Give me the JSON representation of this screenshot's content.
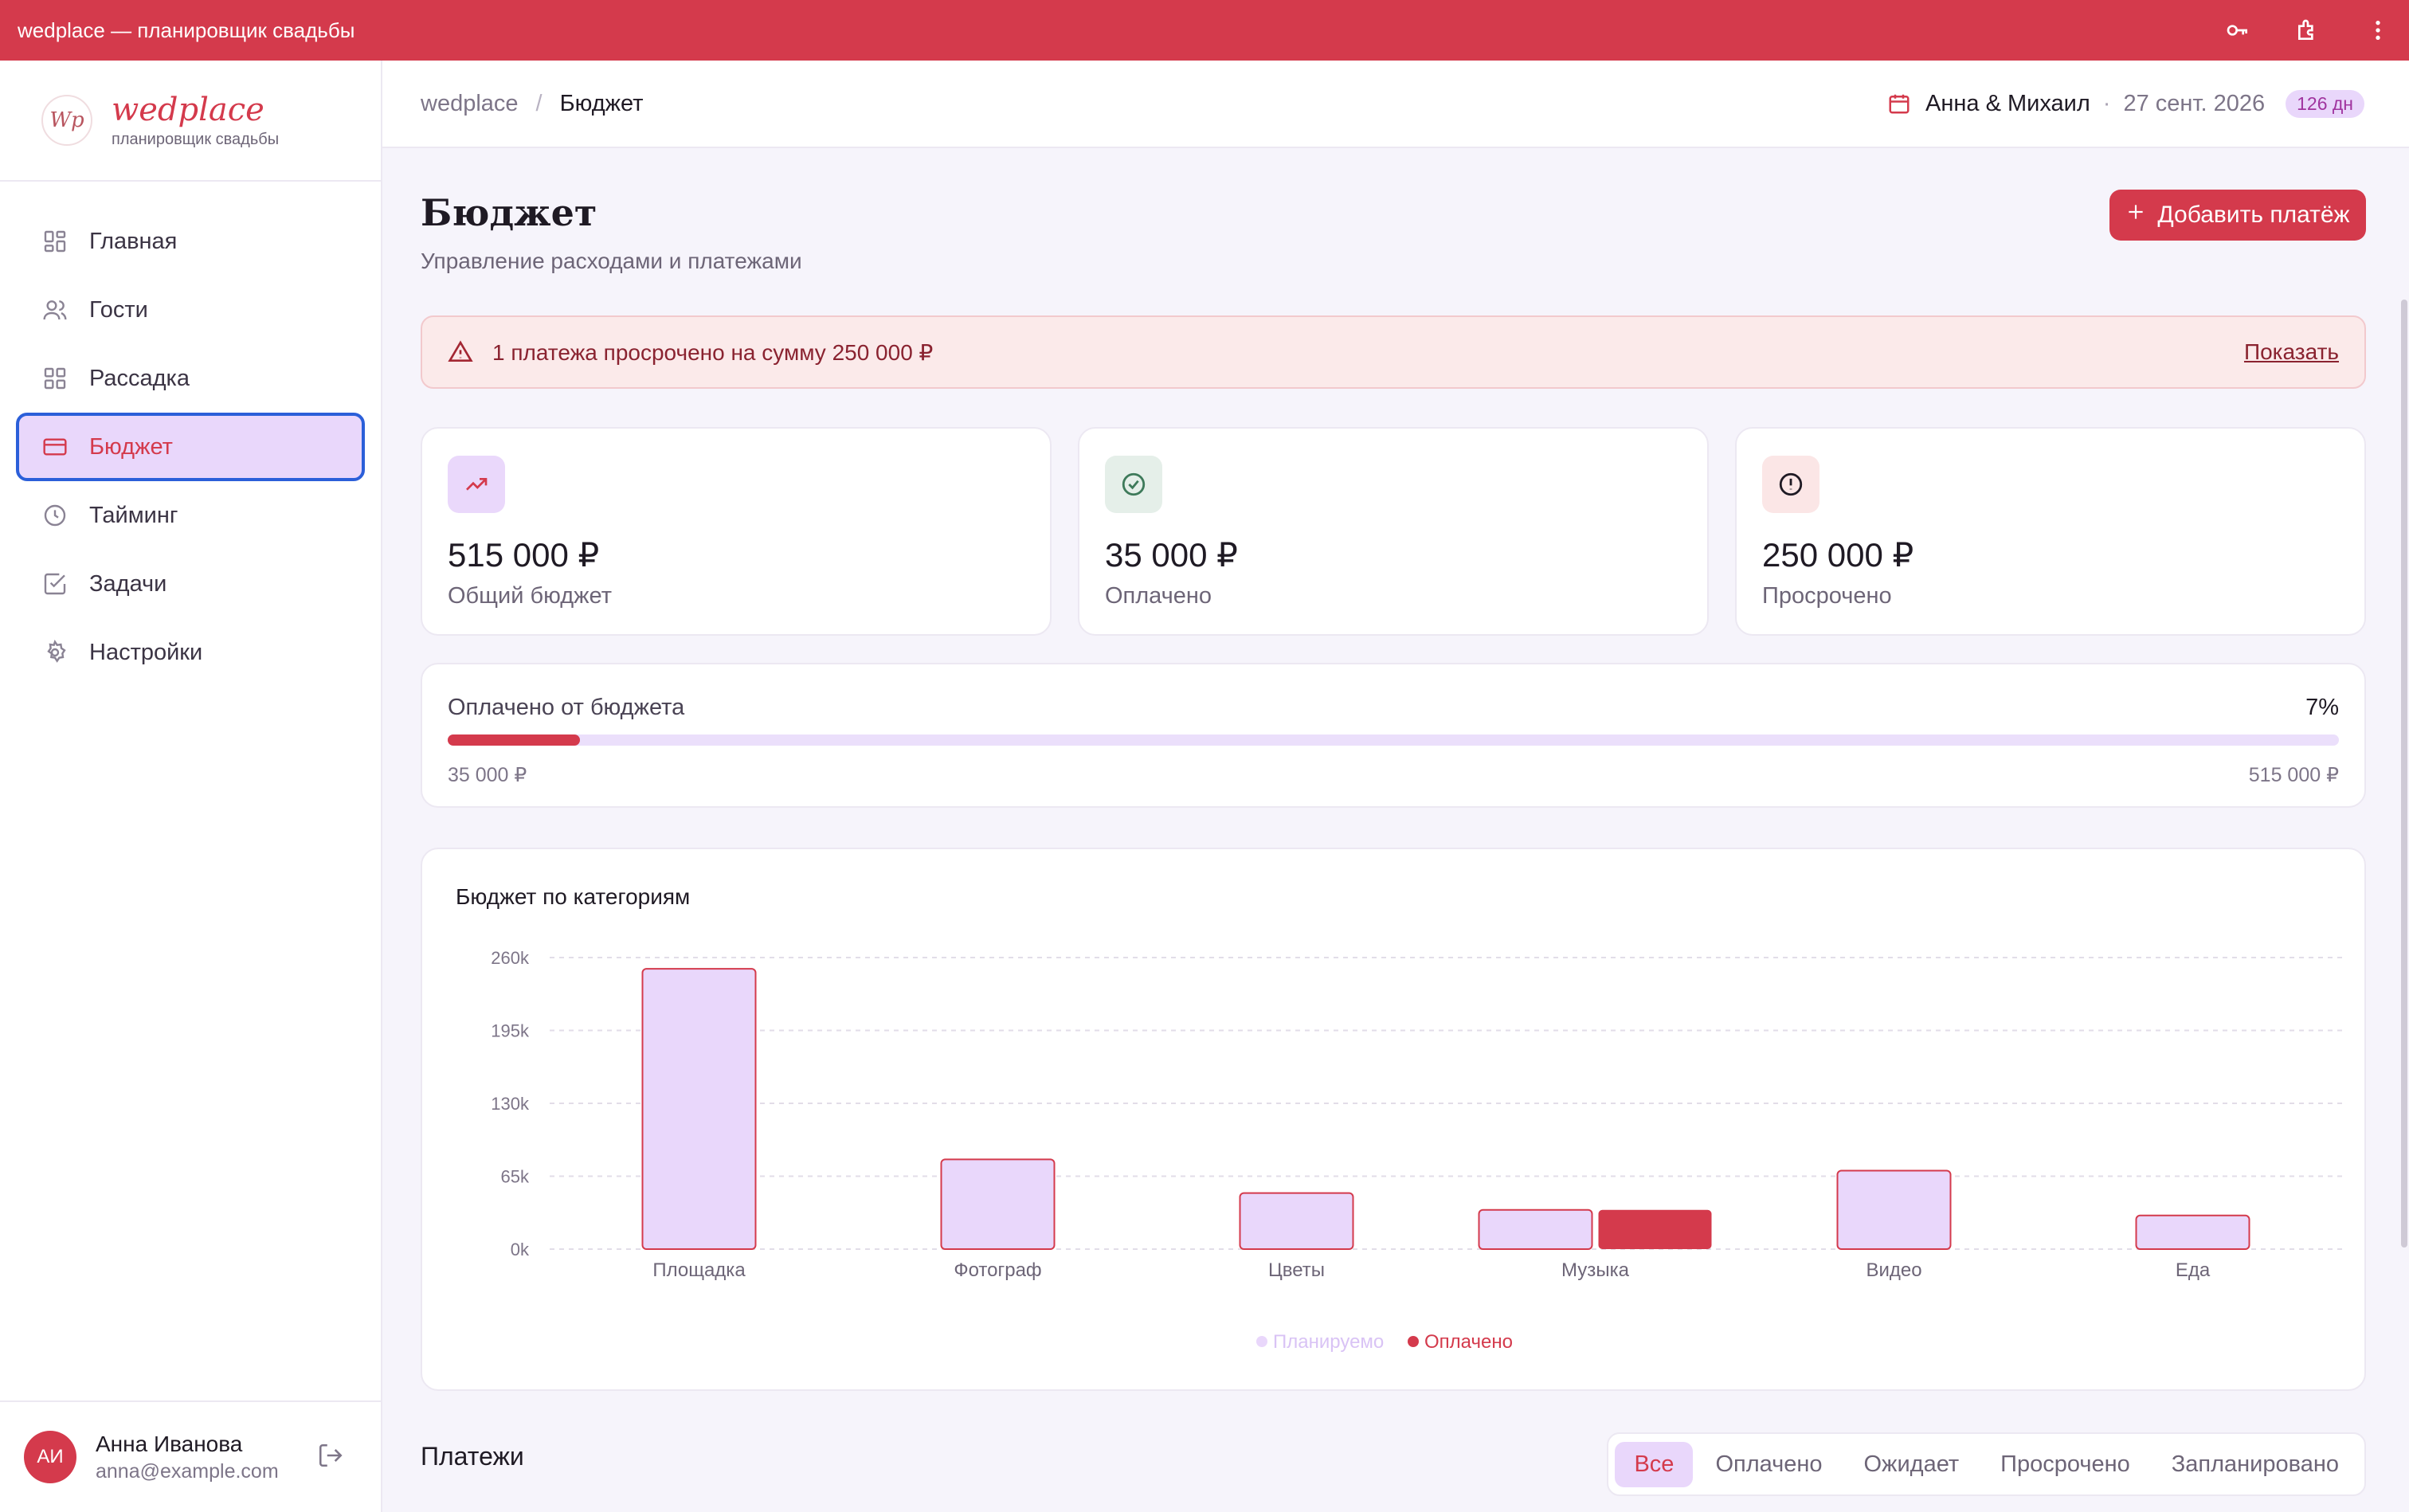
{
  "window": {
    "title": "wedplace — планировщик свадьбы"
  },
  "brand": {
    "logo": "Wp",
    "name": "wedplace",
    "tagline": "планировщик свадьбы"
  },
  "nav": {
    "items": [
      {
        "label": "Главная",
        "icon": "dashboard-icon"
      },
      {
        "label": "Гости",
        "icon": "users-icon"
      },
      {
        "label": "Рассадка",
        "icon": "grid-icon"
      },
      {
        "label": "Бюджет",
        "icon": "wallet-icon",
        "active": true
      },
      {
        "label": "Тайминг",
        "icon": "clock-icon"
      },
      {
        "label": "Задачи",
        "icon": "checkbox-icon"
      },
      {
        "label": "Настройки",
        "icon": "gear-icon"
      }
    ]
  },
  "user": {
    "initials": "АИ",
    "name": "Анна Иванова",
    "email": "anna@example.com"
  },
  "breadcrumb": {
    "root": "wedplace",
    "separator": "/",
    "current": "Бюджет"
  },
  "header": {
    "couple": "Анна & Михаил",
    "date": "27 сент. 2026",
    "days_left": "126 дн"
  },
  "page": {
    "title": "Бюджет",
    "subtitle": "Управление расходами и платежами",
    "add_button": "Добавить платёж"
  },
  "alert": {
    "text": "1 платежа просрочено на сумму 250 000 ₽",
    "link": "Показать"
  },
  "stats": [
    {
      "value": "515 000 ₽",
      "label": "Общий бюджет",
      "icon": "trending-up-icon",
      "bg": "#ead8fb",
      "color": "#d43a4c"
    },
    {
      "value": "35 000 ₽",
      "label": "Оплачено",
      "icon": "check-circle-icon",
      "bg": "#e5efe9",
      "color": "#3e7a5a"
    },
    {
      "value": "250 000 ₽",
      "label": "Просрочено",
      "icon": "alert-circle-icon",
      "bg": "#fbe6e6",
      "color": "#b52a36"
    }
  ],
  "progress": {
    "label": "Оплачено от бюджета",
    "percent_text": "7%",
    "fraction": 0.07,
    "min": "35 000 ₽",
    "max": "515 000 ₽"
  },
  "chart_data": {
    "type": "bar",
    "title": "Бюджет по категориям",
    "categories": [
      "Площадка",
      "Фотограф",
      "Цветы",
      "Музыка",
      "Видео",
      "Еда"
    ],
    "series": [
      {
        "name": "Планируемо",
        "values": [
          250000,
          80000,
          50000,
          35000,
          70000,
          30000
        ],
        "color": "#e9d7fb"
      },
      {
        "name": "Оплачено",
        "values": [
          0,
          0,
          0,
          35000,
          0,
          0
        ],
        "color": "#d43a4c"
      }
    ],
    "yticks": [
      "0k",
      "65k",
      "130k",
      "195k",
      "260k"
    ],
    "ylim": [
      0,
      260000
    ],
    "grid": true,
    "legend": "bottom-center"
  },
  "payments": {
    "title": "Платежи",
    "filters": [
      "Все",
      "Оплачено",
      "Ожидает",
      "Просрочено",
      "Запланировано"
    ],
    "active_filter": "Все"
  },
  "colors": {
    "accent": "#d43a4c",
    "lavender": "#e9d7fb",
    "focus": "#2b5fd9"
  }
}
